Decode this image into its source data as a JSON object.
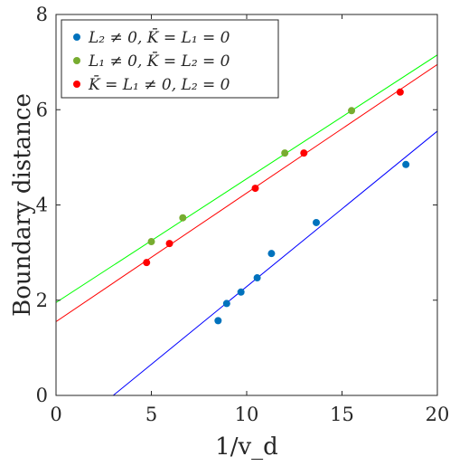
{
  "chart_data": {
    "type": "scatter",
    "xlabel": "1/v_d",
    "ylabel": "Boundary distance",
    "xlim": [
      0,
      20
    ],
    "ylim": [
      0,
      8
    ],
    "xticks": [
      "0",
      "5",
      "10",
      "15",
      "20"
    ],
    "yticks": [
      "0",
      "2",
      "4",
      "6",
      "8"
    ],
    "grid": false,
    "legend_position": "top-left",
    "series": [
      {
        "name": "L₂ ≠ 0, K̄ = L₁ = 0",
        "color": "#0072BD",
        "line_color": "#0000ff",
        "points": [
          [
            8.5,
            1.57
          ],
          [
            8.95,
            1.93
          ],
          [
            9.7,
            2.17
          ],
          [
            10.55,
            2.47
          ],
          [
            11.3,
            2.98
          ],
          [
            13.65,
            3.63
          ],
          [
            18.35,
            4.85
          ]
        ],
        "fit": [
          [
            3.0,
            0.0
          ],
          [
            20.0,
            5.55
          ]
        ]
      },
      {
        "name": "L₁ ≠ 0, K̄ = L₂ = 0",
        "color": "#77AC30",
        "line_color": "#00ff00",
        "points": [
          [
            5.0,
            3.23
          ],
          [
            6.65,
            3.73
          ],
          [
            12.0,
            5.09
          ],
          [
            15.5,
            5.98
          ]
        ],
        "fit": [
          [
            0.0,
            1.95
          ],
          [
            20.0,
            7.15
          ]
        ]
      },
      {
        "name": "K̄ = L₁ ≠ 0, L₂ = 0",
        "color": "#ff0000",
        "line_color": "#ff0000",
        "points": [
          [
            4.75,
            2.79
          ],
          [
            5.95,
            3.19
          ],
          [
            10.45,
            4.35
          ],
          [
            13.0,
            5.09
          ],
          [
            18.05,
            6.37
          ]
        ],
        "fit": [
          [
            0.0,
            1.55
          ],
          [
            20.0,
            6.95
          ]
        ]
      }
    ]
  }
}
